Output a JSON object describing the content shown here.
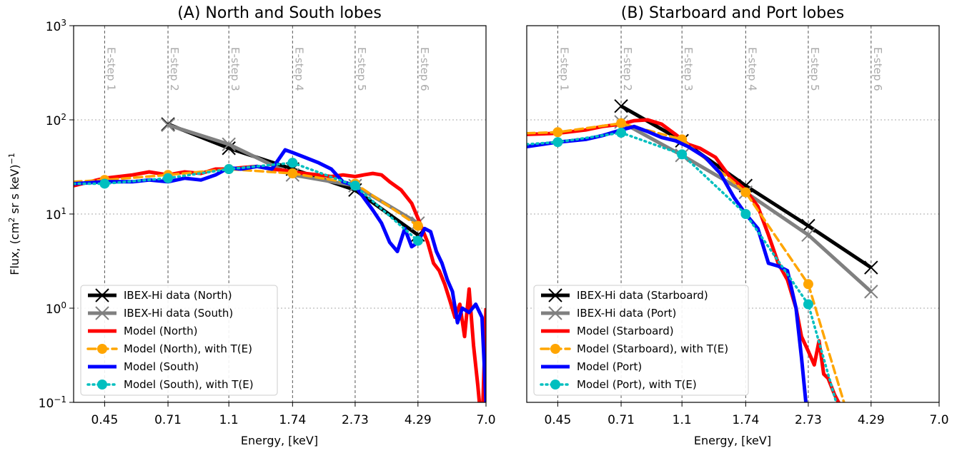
{
  "figure": {
    "ylabel_pre": "Flux, (cm",
    "ylabel_sup1": "2",
    "ylabel_mid": " sr s keV)",
    "ylabel_sup2": "−1",
    "y_ticks": [
      {
        "base": "10",
        "exp": "3"
      },
      {
        "base": "10",
        "exp": "2"
      },
      {
        "base": "10",
        "exp": "1"
      },
      {
        "base": "10",
        "exp": "0"
      },
      {
        "base": "10",
        "exp": "−1"
      }
    ],
    "x_ticks": [
      "0.45",
      "0.71",
      "1.1",
      "1.74",
      "2.73",
      "4.29",
      "7.0"
    ],
    "estep_labels": [
      "E-step 1",
      "E-step 2",
      "E-step 3",
      "E-step 4",
      "E-step 5",
      "E-step 6"
    ]
  },
  "chart_data": [
    {
      "type": "line",
      "title": "(A) North and South lobes",
      "xlabel": "Energy, [keV]",
      "ylabel": "Flux, (cm² sr s keV)⁻¹",
      "x_scale": "log",
      "y_scale": "log",
      "xlim": [
        0.36,
        7.0
      ],
      "ylim": [
        0.1,
        1000
      ],
      "grid": true,
      "legend_position": "lower-left",
      "series": [
        {
          "name": "IBEX-Hi data (North)",
          "color": "#000000",
          "style": "solid",
          "marker": "x",
          "x": [
            0.71,
            1.1,
            1.74,
            2.73,
            4.29
          ],
          "y": [
            90,
            50,
            30,
            18,
            6
          ]
        },
        {
          "name": "IBEX-Hi data (South)",
          "color": "#808080",
          "style": "solid",
          "marker": "x",
          "x": [
            0.71,
            1.1,
            1.74,
            2.73,
            4.29
          ],
          "y": [
            88,
            55,
            26,
            20,
            8
          ]
        },
        {
          "name": "Model (North)",
          "color": "#ff0000",
          "style": "solid",
          "marker": "none",
          "x": [
            0.36,
            0.45,
            0.55,
            0.62,
            0.71,
            0.8,
            0.9,
            1.0,
            1.1,
            1.2,
            1.35,
            1.5,
            1.65,
            1.74,
            1.9,
            2.1,
            2.3,
            2.5,
            2.73,
            2.9,
            3.1,
            3.3,
            3.5,
            3.8,
            4.1,
            4.29,
            4.6,
            4.8,
            5.0,
            5.2,
            5.4,
            5.6,
            5.8,
            6.0,
            6.2,
            6.4,
            6.6,
            6.8,
            7.0
          ],
          "y": [
            20,
            24,
            26,
            28,
            26,
            28,
            27,
            30,
            30,
            31,
            32,
            30,
            29,
            28,
            27,
            26,
            25,
            26,
            25,
            26,
            27,
            26,
            22,
            18,
            13,
            9,
            5,
            3,
            2.5,
            1.8,
            1.2,
            0.8,
            1.1,
            0.5,
            1.6,
            0.4,
            0.15,
            0.05,
            1.0
          ]
        },
        {
          "name": "Model (North), with T(E)",
          "color": "#ffa500",
          "style": "dashed",
          "marker": "o",
          "x": [
            0.36,
            0.45,
            0.71,
            1.1,
            1.74,
            2.73,
            4.29
          ],
          "y": [
            22,
            23,
            26,
            30,
            27,
            21,
            7.5
          ]
        },
        {
          "name": "Model (South)",
          "color": "#0000ff",
          "style": "solid",
          "marker": "none",
          "x": [
            0.36,
            0.45,
            0.55,
            0.62,
            0.71,
            0.8,
            0.9,
            1.0,
            1.1,
            1.2,
            1.35,
            1.5,
            1.65,
            1.74,
            1.9,
            2.1,
            2.3,
            2.5,
            2.73,
            2.9,
            3.1,
            3.3,
            3.5,
            3.7,
            3.9,
            4.1,
            4.29,
            4.5,
            4.7,
            4.9,
            5.1,
            5.3,
            5.5,
            5.7,
            5.9,
            6.2,
            6.5,
            6.8,
            7.0
          ],
          "y": [
            21,
            22,
            22,
            23,
            22,
            24,
            23,
            26,
            31,
            30,
            32,
            30,
            48,
            45,
            40,
            35,
            30,
            22,
            20,
            15,
            11,
            8,
            5,
            4,
            7,
            4.5,
            5,
            7,
            6.5,
            4,
            3,
            2,
            1.5,
            0.7,
            1.0,
            0.9,
            1.1,
            0.8,
            0.1
          ]
        },
        {
          "name": "Model (South), with T(E)",
          "color": "#00bfbf",
          "style": "dotted",
          "marker": "o",
          "x": [
            0.36,
            0.45,
            0.71,
            1.1,
            1.74,
            2.73,
            4.29
          ],
          "y": [
            21,
            21,
            24,
            30,
            35,
            20,
            5.2
          ]
        }
      ]
    },
    {
      "type": "line",
      "title": "(B) Starboard and Port lobes",
      "xlabel": "Energy, [keV]",
      "ylabel": "",
      "x_scale": "log",
      "y_scale": "log",
      "xlim": [
        0.36,
        7.0
      ],
      "ylim": [
        0.1,
        1000
      ],
      "grid": true,
      "legend_position": "lower-left",
      "series": [
        {
          "name": "IBEX-Hi data (Starboard)",
          "color": "#000000",
          "style": "solid",
          "marker": "x",
          "x": [
            0.71,
            1.1,
            1.74,
            2.73,
            4.29
          ],
          "y": [
            140,
            60,
            20,
            7.5,
            2.7
          ]
        },
        {
          "name": "IBEX-Hi data (Port)",
          "color": "#808080",
          "style": "solid",
          "marker": "x",
          "x": [
            0.71,
            1.1,
            1.74,
            2.73,
            4.29
          ],
          "y": [
            95,
            42,
            17,
            6,
            1.5
          ]
        },
        {
          "name": "Model (Starboard)",
          "color": "#ff0000",
          "style": "solid",
          "marker": "none",
          "x": [
            0.36,
            0.45,
            0.55,
            0.62,
            0.71,
            0.78,
            0.86,
            0.95,
            1.05,
            1.15,
            1.25,
            1.4,
            1.55,
            1.74,
            1.9,
            2.05,
            2.2,
            2.35,
            2.5,
            2.6,
            2.73,
            2.85,
            2.95,
            3.05,
            3.15,
            3.3,
            3.45
          ],
          "y": [
            70,
            72,
            78,
            85,
            90,
            98,
            100,
            90,
            70,
            55,
            50,
            40,
            25,
            18,
            12,
            6,
            3,
            2,
            1,
            0.5,
            0.35,
            0.25,
            0.45,
            0.2,
            0.18,
            0.12,
            0.09
          ]
        },
        {
          "name": "Model (Starboard), with T(E)",
          "color": "#ffa500",
          "style": "dashed",
          "marker": "o",
          "x": [
            0.36,
            0.45,
            0.71,
            1.1,
            1.74,
            2.73,
            3.6
          ],
          "y": [
            72,
            74,
            92,
            62,
            17,
            1.8,
            0.08
          ]
        },
        {
          "name": "Model (Port)",
          "color": "#0000ff",
          "style": "solid",
          "marker": "none",
          "x": [
            0.36,
            0.45,
            0.55,
            0.62,
            0.71,
            0.78,
            0.86,
            0.95,
            1.05,
            1.15,
            1.3,
            1.45,
            1.6,
            1.74,
            1.9,
            2.05,
            2.2,
            2.35,
            2.5,
            2.6,
            2.7
          ],
          "y": [
            52,
            58,
            62,
            68,
            78,
            85,
            75,
            65,
            60,
            52,
            40,
            27,
            15,
            10,
            7,
            3,
            2.8,
            2.5,
            1,
            0.3,
            0.08
          ]
        },
        {
          "name": "Model (Port), with T(E)",
          "color": "#00bfbf",
          "style": "dotted",
          "marker": "o",
          "x": [
            0.36,
            0.45,
            0.71,
            1.1,
            1.74,
            2.73,
            3.4
          ],
          "y": [
            55,
            58,
            73,
            43,
            10,
            1.1,
            0.08
          ]
        }
      ]
    }
  ]
}
